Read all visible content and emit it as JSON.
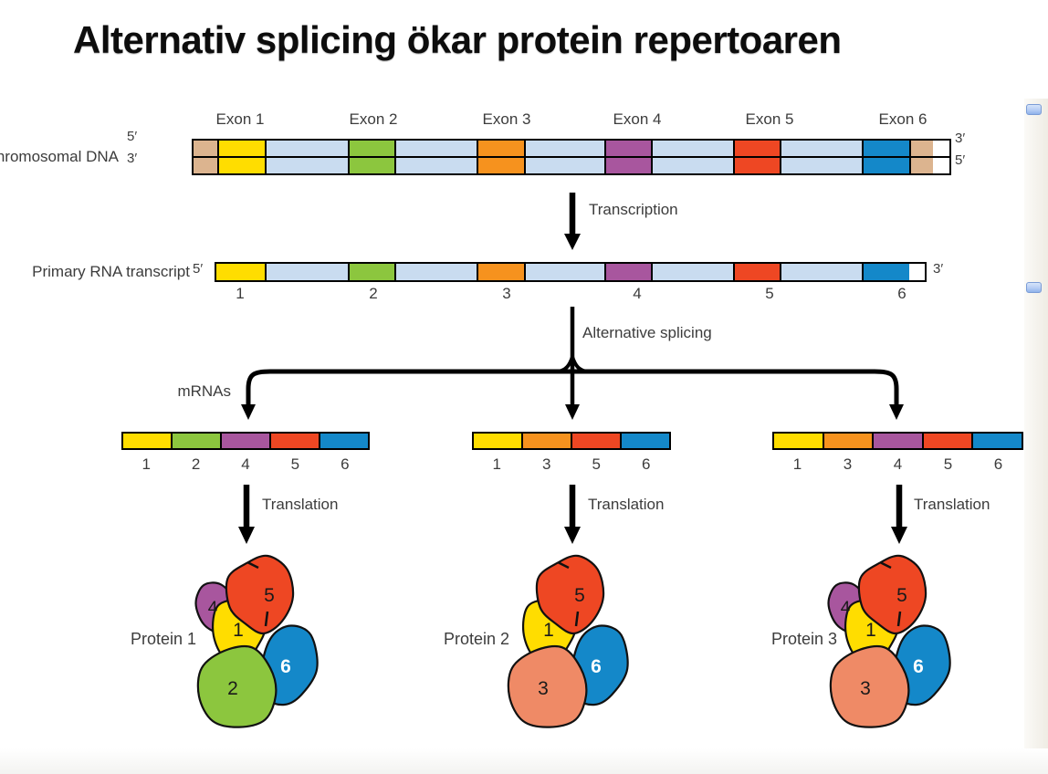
{
  "slide": {
    "title": "Alternativ splicing ökar protein repertoaren"
  },
  "colors": {
    "exon1": "#ffdd00",
    "exon2": "#8cc63e",
    "exon3": "#f6921e",
    "exon4": "#a8569e",
    "exon5": "#ee4723",
    "exon6": "#1488c9",
    "intron": "#c9dcf0",
    "dna_end": "#dcb48f",
    "protein_domain_3": "#ef8a66",
    "label_text": "#3c3c3c",
    "outline": "#000000"
  },
  "dna": {
    "label": "Chromosomal DNA",
    "left_top_prime": "5′",
    "left_bottom_prime": "3′",
    "right_top_prime": "3′",
    "right_bottom_prime": "5′",
    "exon_labels": [
      "Exon 1",
      "Exon 2",
      "Exon 3",
      "Exon 4",
      "Exon 5",
      "Exon 6"
    ]
  },
  "transcription": {
    "label": "Transcription"
  },
  "transcript": {
    "label": "Primary RNA transcript",
    "five_prime": "5′",
    "three_prime": "3′",
    "exon_numbers": [
      "1",
      "2",
      "3",
      "4",
      "5",
      "6"
    ]
  },
  "splicing": {
    "label": "Alternative splicing",
    "mrnas_label": "mRNAs"
  },
  "mrnas": [
    {
      "exons": [
        "1",
        "2",
        "4",
        "5",
        "6"
      ]
    },
    {
      "exons": [
        "1",
        "3",
        "5",
        "6"
      ]
    },
    {
      "exons": [
        "1",
        "3",
        "4",
        "5",
        "6"
      ]
    }
  ],
  "translation": {
    "label": "Translation"
  },
  "proteins": [
    {
      "name": "Protein 1",
      "domains": [
        "4",
        "1",
        "5",
        "6",
        "2"
      ]
    },
    {
      "name": "Protein 2",
      "domains": [
        "1",
        "5",
        "6",
        "3"
      ]
    },
    {
      "name": "Protein 3",
      "domains": [
        "4",
        "1",
        "5",
        "6",
        "3"
      ]
    }
  ]
}
